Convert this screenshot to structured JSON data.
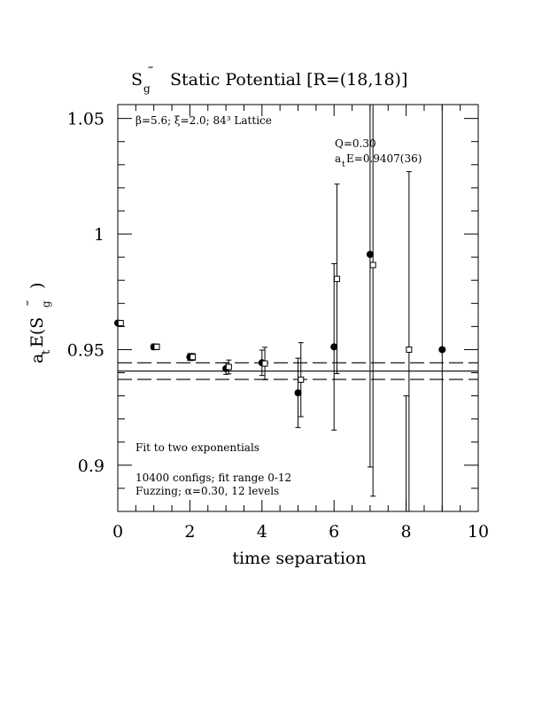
{
  "chart_data": {
    "type": "scatter",
    "title": "Static Potential [R=(18,18)]",
    "title_symbol": "S",
    "title_symbol_sub": "g",
    "title_symbol_sup": "‴",
    "xlabel": "time separation",
    "ylabel": {
      "prefix": "a",
      "prefix_sub": "t",
      "body": "E(S",
      "body_sup": "‴",
      "body_sub": "g",
      "suffix": ")"
    },
    "xlim": [
      0,
      10
    ],
    "ylim": [
      0.88,
      1.056
    ],
    "x_ticks": [
      "0",
      "2",
      "4",
      "6",
      "8",
      "10"
    ],
    "y_ticks": [
      "0.9",
      "0.95",
      "1",
      "1.05"
    ],
    "x_tick_values": [
      0,
      2,
      4,
      6,
      8,
      10
    ],
    "y_tick_values": [
      0.9,
      0.95,
      1.0,
      1.05
    ],
    "lattice_info": "β=5.6; ξ=2.0; 84³ Lattice",
    "fit_q": "Q=0.30",
    "fit_energy": {
      "prefix": "a",
      "sub": "t",
      "rest": "E=0.9407(36)"
    },
    "fit_description": "Fit to two exponentials",
    "configs_line": "10400 configs; fit range 0-12",
    "fuzzing_line": "Fuzzing; α=0.30, 12 levels",
    "fit_value": 0.9407,
    "fit_error": 0.0036,
    "series": [
      {
        "marker": "filled-circle",
        "points": [
          {
            "x": 0,
            "y": 0.9615,
            "err": 0.0008
          },
          {
            "x": 1,
            "y": 0.9512,
            "err": 0.0012
          },
          {
            "x": 2,
            "y": 0.9468,
            "err": 0.0015
          },
          {
            "x": 3,
            "y": 0.9418,
            "err": 0.0025
          },
          {
            "x": 4,
            "y": 0.9443,
            "err": 0.0055
          },
          {
            "x": 5,
            "y": 0.9313,
            "err": 0.015
          },
          {
            "x": 6,
            "y": 0.9512,
            "err": 0.036
          },
          {
            "x": 7,
            "y": 0.9912,
            "err": 0.092
          },
          {
            "x": 8,
            "y": 0.86,
            "err": 0.07
          },
          {
            "x": 9,
            "y": 0.95,
            "err": 0.4
          }
        ]
      },
      {
        "marker": "open-square",
        "points": [
          {
            "x": 0.08,
            "y": 0.9615,
            "err": 0.0008
          },
          {
            "x": 1.08,
            "y": 0.9512,
            "err": 0.0012
          },
          {
            "x": 2.08,
            "y": 0.9468,
            "err": 0.0015
          },
          {
            "x": 3.08,
            "y": 0.9425,
            "err": 0.003
          },
          {
            "x": 4.08,
            "y": 0.944,
            "err": 0.007
          },
          {
            "x": 5.08,
            "y": 0.937,
            "err": 0.016
          },
          {
            "x": 6.08,
            "y": 0.9806,
            "err": 0.041
          },
          {
            "x": 7.08,
            "y": 0.9866,
            "err": 0.1
          },
          {
            "x": 8.08,
            "y": 0.95,
            "err": 0.077
          }
        ]
      }
    ]
  }
}
